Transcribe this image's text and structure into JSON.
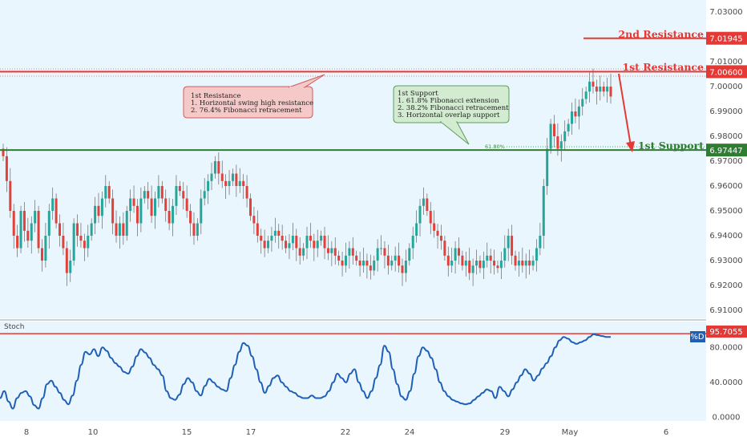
{
  "chart_data": [
    {
      "type": "candlestick",
      "ylim": [
        6.905,
        7.035
      ],
      "price_ticks": [
        "7.03000",
        "7.01000",
        "7.00000",
        "6.99000",
        "6.98000",
        "6.97000",
        "6.96000",
        "6.95000",
        "6.94000",
        "6.93000",
        "6.92000",
        "6.91000"
      ],
      "x_ticks": [
        "8",
        "10",
        "15",
        "17",
        "22",
        "24",
        "29",
        "May",
        "6"
      ],
      "levels": [
        {
          "name": "2nd Resistance",
          "value": 7.01945,
          "tag": "7.01945",
          "color": "#e53935"
        },
        {
          "name": "1st Resistance",
          "value": 7.006,
          "tag": "7.00600",
          "color": "#e53935"
        },
        {
          "name": "1st Support",
          "value": 6.97447,
          "tag": "6.97447",
          "color": "#2e7d32"
        }
      ],
      "fib_label": "61.80%",
      "candles_close": [
        6.972,
        6.962,
        6.95,
        6.94,
        6.935,
        6.95,
        6.942,
        6.938,
        6.945,
        6.95,
        6.935,
        6.93,
        6.94,
        6.95,
        6.955,
        6.945,
        6.94,
        6.935,
        6.925,
        6.93,
        6.945,
        6.94,
        6.938,
        6.935,
        6.94,
        6.945,
        6.952,
        6.948,
        6.955,
        6.96,
        6.955,
        6.945,
        6.94,
        6.945,
        6.94,
        6.95,
        6.955,
        6.952,
        6.945,
        6.955,
        6.958,
        6.955,
        6.948,
        6.955,
        6.96,
        6.955,
        6.95,
        6.945,
        6.952,
        6.96,
        6.958,
        6.955,
        6.95,
        6.945,
        6.94,
        6.945,
        6.955,
        6.958,
        6.962,
        6.965,
        6.97,
        6.965,
        6.962,
        6.96,
        6.962,
        6.965,
        6.96,
        6.962,
        6.96,
        6.955,
        6.948,
        6.945,
        6.94,
        6.938,
        6.935,
        6.938,
        6.94,
        6.942,
        6.94,
        6.938,
        6.935,
        6.937,
        6.94,
        6.935,
        6.932,
        6.935,
        6.94,
        6.938,
        6.935,
        6.938,
        6.94,
        6.935,
        6.933,
        6.935,
        6.932,
        6.93,
        6.928,
        6.932,
        6.935,
        6.932,
        6.93,
        6.928,
        6.93,
        6.928,
        6.926,
        6.93,
        6.935,
        6.935,
        6.932,
        6.928,
        6.93,
        6.932,
        6.928,
        6.925,
        6.93,
        6.935,
        6.94,
        6.945,
        6.952,
        6.955,
        6.95,
        6.945,
        6.942,
        6.94,
        6.938,
        6.932,
        6.928,
        6.93,
        6.935,
        6.932,
        6.928,
        6.93,
        6.925,
        6.928,
        6.93,
        6.927,
        6.93,
        6.932,
        6.93,
        6.928,
        6.927,
        6.93,
        6.935,
        6.94,
        6.932,
        6.928,
        6.93,
        6.928,
        6.93,
        6.928,
        6.93,
        6.935,
        6.94,
        6.96,
        6.975,
        6.985,
        6.98,
        6.975,
        6.978,
        6.982,
        6.985,
        6.99,
        6.988,
        6.992,
        6.995,
        6.998,
        7.002,
        7.0,
        6.998,
        7.0,
        6.998,
        7.0,
        6.996
      ],
      "stochastic": {
        "label": "Stoch",
        "badge": "%D",
        "ylim": [
          -5,
          105
        ],
        "ticks": [
          "80.0000",
          "40.0000",
          "0.0000"
        ],
        "level": {
          "value": 95.7055,
          "tag": "95.7055",
          "color": "#e53935"
        },
        "values": [
          22,
          30,
          18,
          10,
          22,
          28,
          30,
          24,
          14,
          10,
          22,
          38,
          42,
          35,
          28,
          20,
          15,
          25,
          42,
          60,
          75,
          72,
          78,
          70,
          80,
          76,
          68,
          62,
          58,
          52,
          50,
          58,
          70,
          78,
          74,
          68,
          60,
          55,
          48,
          30,
          22,
          20,
          26,
          38,
          45,
          40,
          30,
          25,
          36,
          44,
          40,
          35,
          32,
          30,
          45,
          60,
          75,
          85,
          82,
          70,
          55,
          40,
          28,
          36,
          45,
          48,
          40,
          35,
          30,
          28,
          24,
          22,
          22,
          25,
          22,
          22,
          24,
          30,
          40,
          50,
          45,
          40,
          50,
          55,
          40,
          30,
          22,
          30,
          45,
          60,
          82,
          75,
          55,
          38,
          24,
          20,
          30,
          50,
          70,
          80,
          76,
          68,
          55,
          40,
          30,
          24,
          20,
          18,
          16,
          15,
          16,
          20,
          24,
          28,
          32,
          30,
          22,
          35,
          30,
          24,
          32,
          40,
          48,
          55,
          50,
          42,
          48,
          56,
          62,
          70,
          80,
          88,
          92,
          90,
          86,
          84,
          86,
          88,
          92,
          95,
          94,
          93,
          92,
          92
        ]
      }
    }
  ],
  "annotations": {
    "resistance_note": [
      "1st Resistance",
      "1. Horizontal swing high resistance",
      "2. 76.4% Fibonacci retracement"
    ],
    "support_note": [
      "1st Support",
      "1. 61.8% Fibonacci extension",
      "2. 38.2% Fibonacci retracement",
      "3. Horizontal overlap support"
    ]
  },
  "colors": {
    "bull": "#26a69a",
    "bear": "#e0413a",
    "stoch_line": "#1f5fb5",
    "support": "#2e7d32",
    "resistance": "#e53935",
    "bg": "#eaf6fd"
  }
}
